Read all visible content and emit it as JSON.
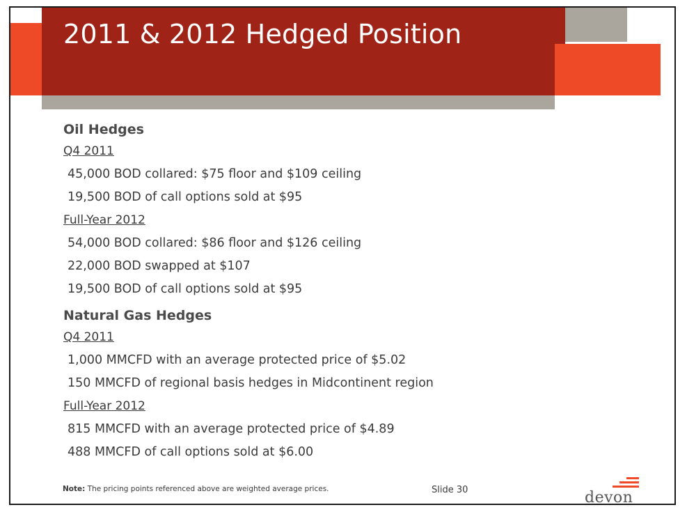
{
  "slide": {
    "title": "2011 & 2012 Hedged Position",
    "sections": [
      {
        "heading": "Oil Hedges",
        "periods": [
          {
            "label": "Q4 2011",
            "items": [
              "45,000 BOD collared: $75 floor and $109 ceiling",
              "19,500 BOD of call options sold at $95"
            ]
          },
          {
            "label": "Full-Year 2012",
            "items": [
              "54,000 BOD collared: $86 floor and $126 ceiling",
              "22,000 BOD swapped at $107",
              "19,500 BOD of call options sold at $95"
            ]
          }
        ]
      },
      {
        "heading": "Natural Gas Hedges",
        "periods": [
          {
            "label": "Q4 2011",
            "items": [
              "1,000 MMCFD with an average protected price of $5.02",
              "150 MMCFD of regional basis hedges in Midcontinent region"
            ]
          },
          {
            "label": "Full-Year 2012",
            "items": [
              "815 MMCFD with an average protected price of $4.89",
              "488 MMCFD of call options sold at $6.00"
            ]
          }
        ]
      }
    ],
    "footer": {
      "note_label": "Note:",
      "note_text": " The pricing points referenced above are weighted average prices.",
      "slide_number": "Slide 30",
      "logo_text": "devon"
    },
    "colors": {
      "title_bar": "#a02318",
      "accent_orange": "#ef4a27",
      "accent_gray": "#aaa59d"
    }
  }
}
